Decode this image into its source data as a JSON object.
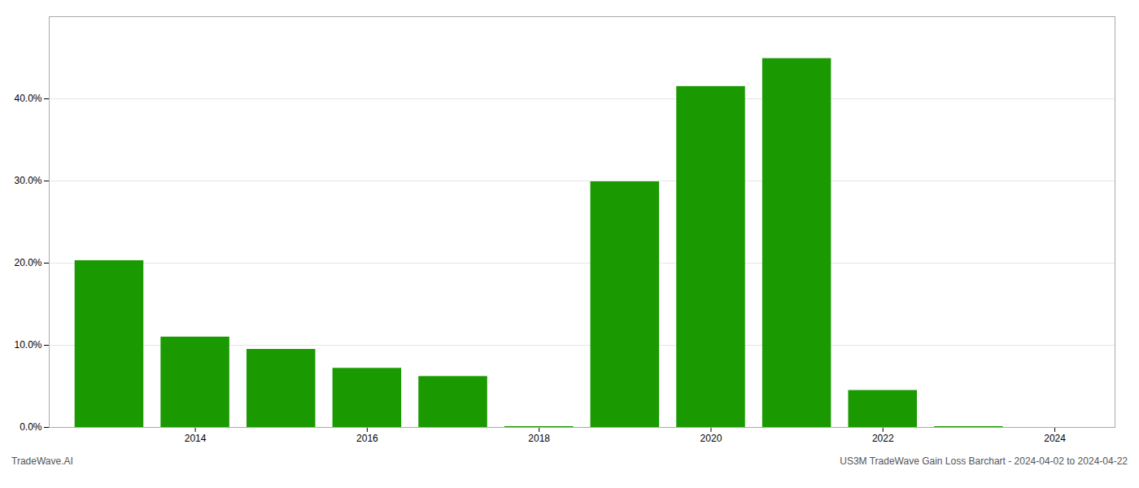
{
  "chart_data": {
    "type": "bar",
    "x": [
      2013,
      2014,
      2015,
      2016,
      2017,
      2018,
      2019,
      2020,
      2021,
      2022,
      2023
    ],
    "values": [
      0.203,
      0.11,
      0.095,
      0.072,
      0.062,
      0.001,
      0.299,
      0.415,
      0.449,
      0.045,
      0.001
    ],
    "color": "#1a9a00",
    "xlim": [
      2012.3,
      2024.7
    ],
    "xticks": [
      2014,
      2016,
      2018,
      2020,
      2022,
      2024
    ],
    "ylim": [
      0,
      0.5
    ],
    "yticks": [
      {
        "value": 0.0,
        "label": "0.0%"
      },
      {
        "value": 0.1,
        "label": "10.0%"
      },
      {
        "value": 0.2,
        "label": "20.0%"
      },
      {
        "value": 0.3,
        "label": "30.0%"
      },
      {
        "value": 0.4,
        "label": "40.0%"
      }
    ],
    "grid": true,
    "annotations": [
      "TradeWave.AI",
      "US3M TradeWave Gain Loss Barchart - 2024-04-02 to 2024-04-22"
    ]
  }
}
